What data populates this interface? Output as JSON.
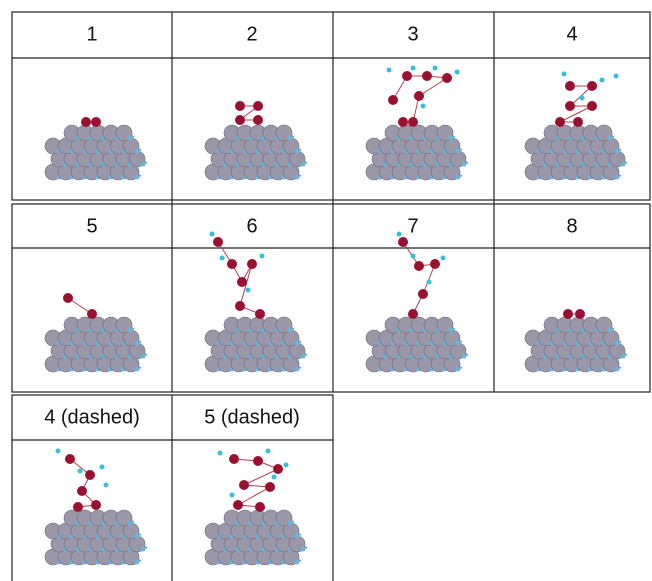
{
  "table": {
    "rows": [
      [
        "1",
        "2",
        "3",
        "4"
      ],
      [
        "5",
        "6",
        "7",
        "8"
      ],
      [
        "4 (dashed)",
        "5 (dashed)"
      ]
    ]
  }
}
